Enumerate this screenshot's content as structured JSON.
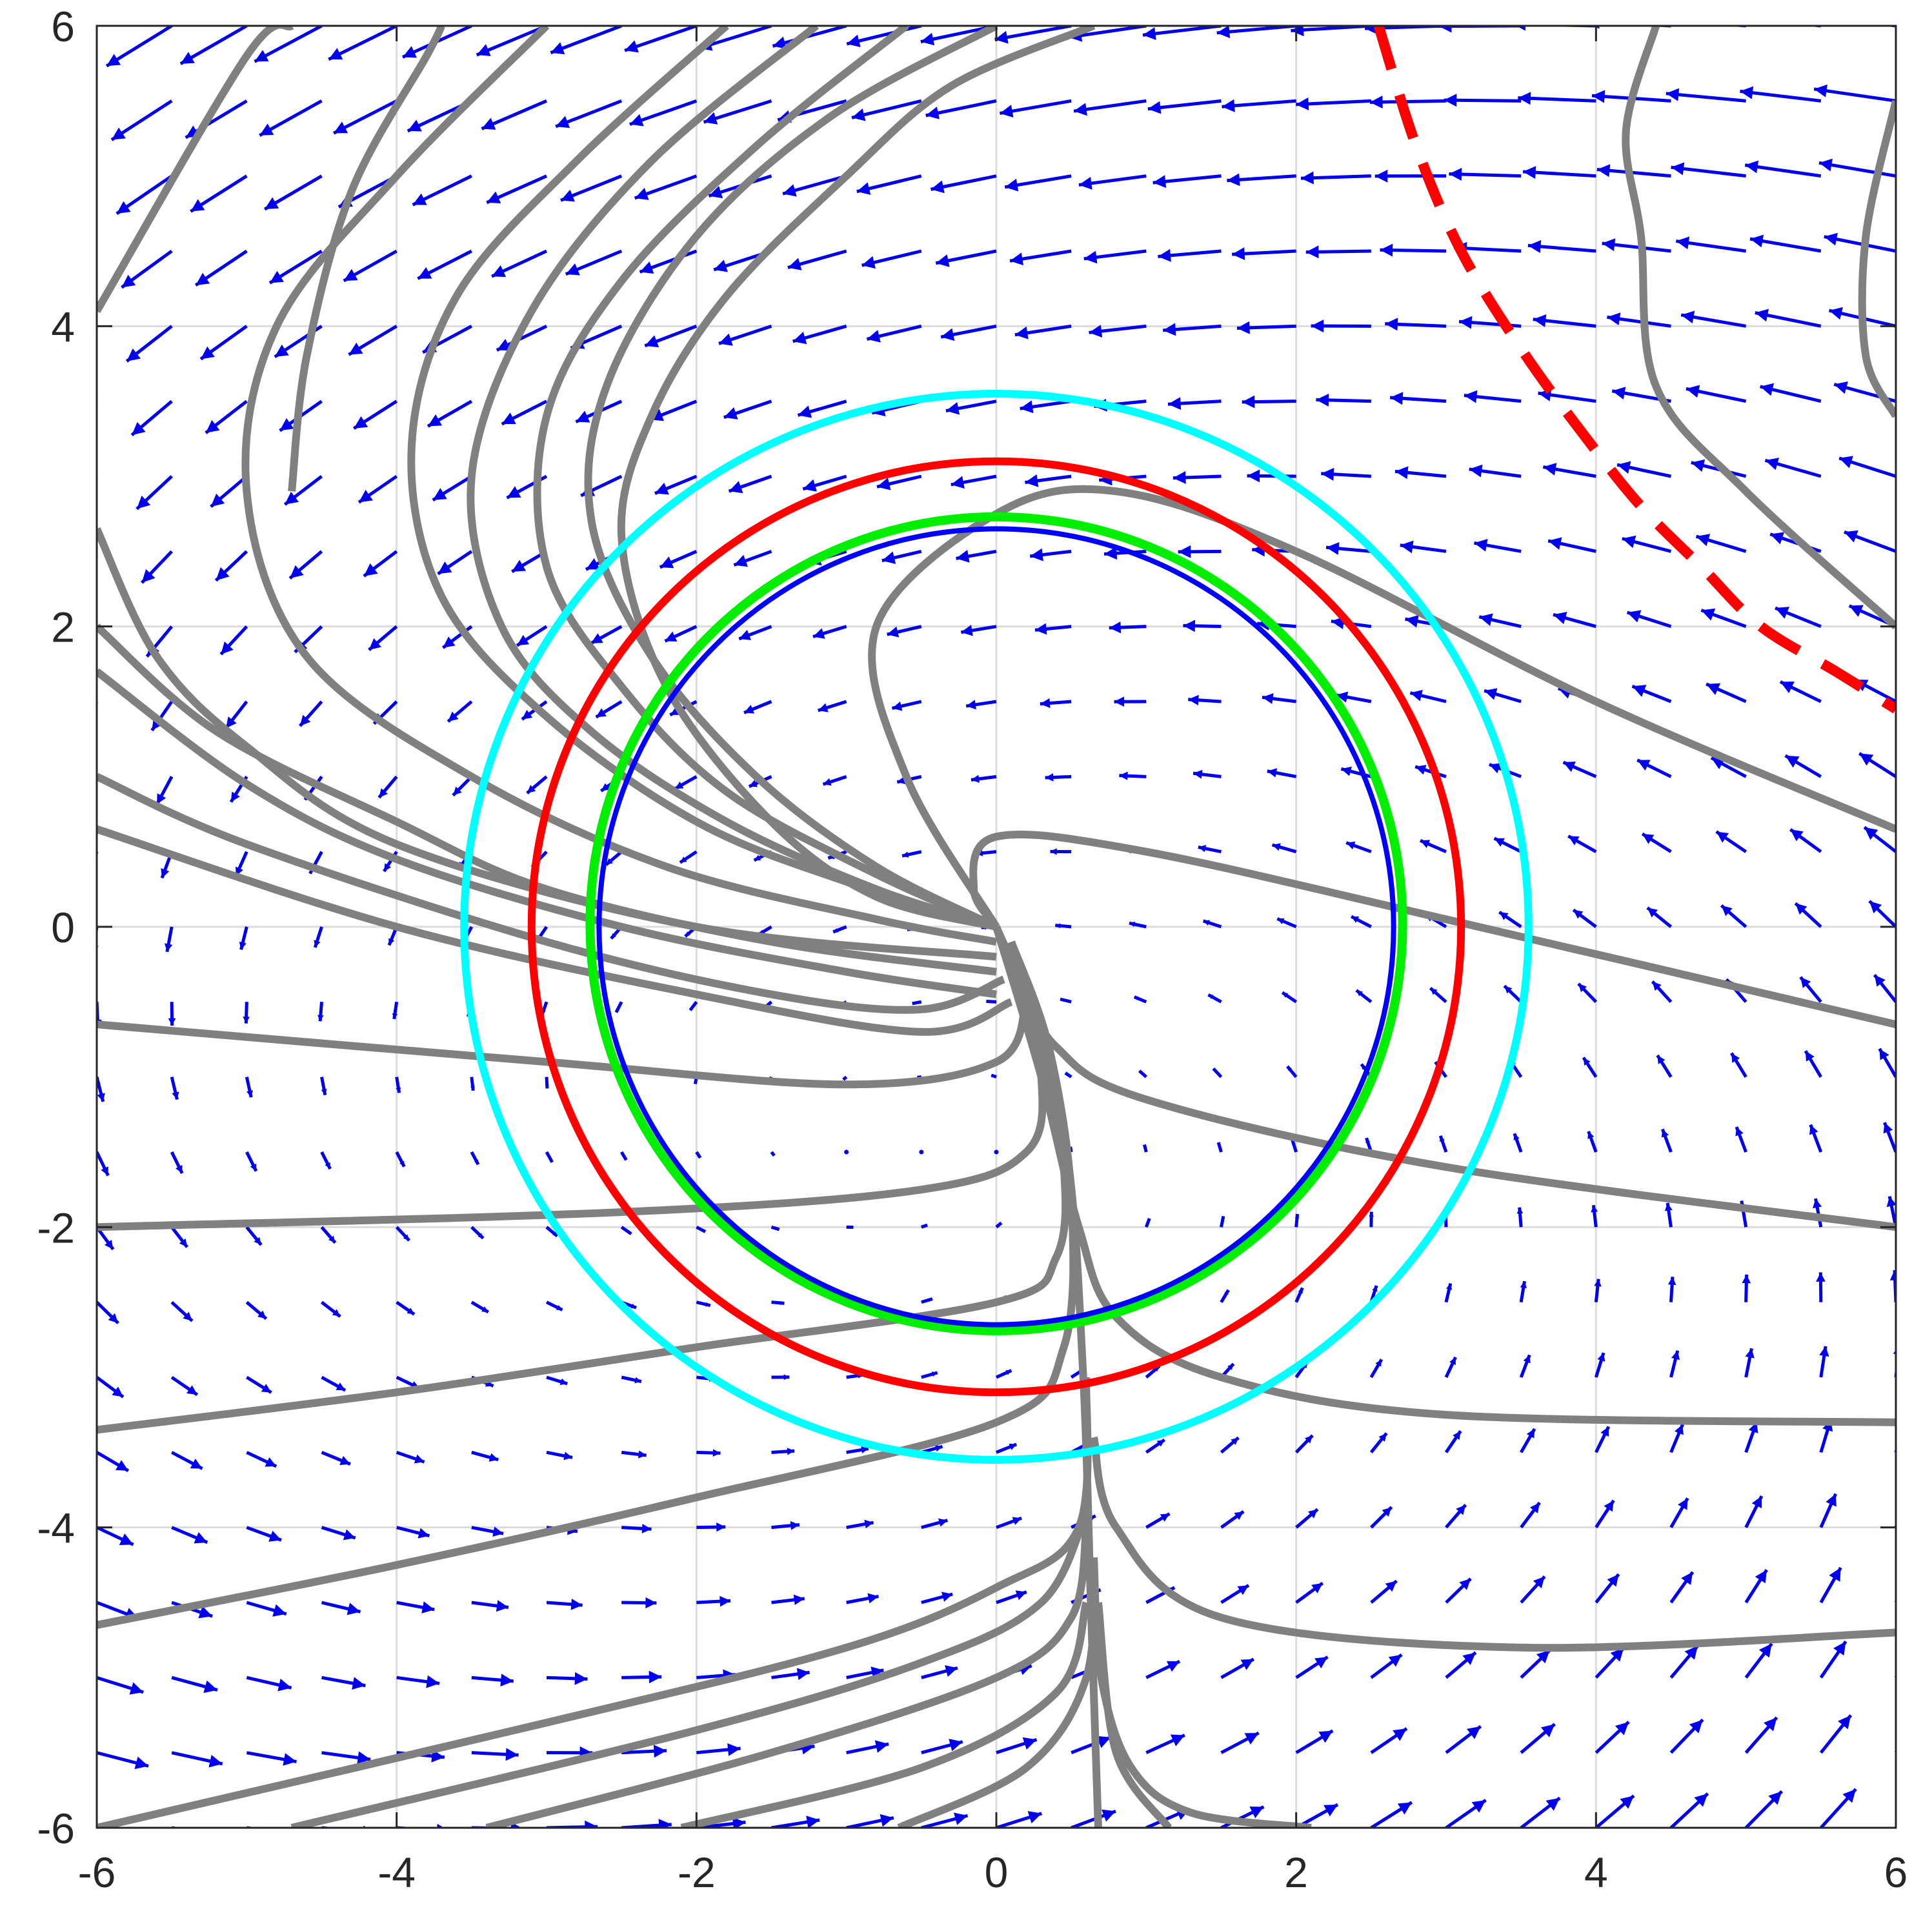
{
  "chart_data": {
    "type": "line",
    "title": "",
    "xlabel": "",
    "ylabel": "",
    "xlim": [
      -6,
      6
    ],
    "ylim": [
      -6,
      6
    ],
    "grid": true,
    "xticks": [
      -6,
      -4,
      -2,
      0,
      2,
      4,
      6
    ],
    "yticks": [
      -6,
      -4,
      -2,
      0,
      2,
      4,
      6
    ],
    "xtick_labels": [
      "-6",
      "-4",
      "-2",
      "0",
      "2",
      "4",
      "6"
    ],
    "ytick_labels": [
      "-6",
      "-4",
      "-2",
      "0",
      "2",
      "4",
      "6"
    ],
    "colors": {
      "vector_field": "#0000ee",
      "streamline": "#808080",
      "circle_cyan": "#00ffff",
      "circle_red": "#ff0000",
      "circle_green": "#00ee00",
      "circle_blue": "#0000ff",
      "dashed_curve": "#ff0000"
    },
    "circles": [
      {
        "center": [
          0,
          0
        ],
        "radius": 3.55,
        "color": "#00ffff"
      },
      {
        "center": [
          0,
          0
        ],
        "radius": 3.1,
        "color": "#ff0000"
      },
      {
        "center": [
          0,
          0.02
        ],
        "radius": 2.71,
        "color": "#00ee00"
      },
      {
        "center": [
          0,
          0
        ],
        "radius": 2.65,
        "color": "#0000ff"
      }
    ],
    "dashed_curve": {
      "color": "#ff0000",
      "points": [
        [
          2.55,
          6.0
        ],
        [
          2.8,
          5.2
        ],
        [
          3.1,
          4.5
        ],
        [
          3.5,
          3.85
        ],
        [
          3.9,
          3.3
        ],
        [
          4.3,
          2.8
        ],
        [
          4.7,
          2.4
        ],
        [
          5.1,
          2.0
        ],
        [
          5.6,
          1.7
        ],
        [
          6.0,
          1.45
        ]
      ]
    },
    "vector_field": {
      "x_range": [
        -6,
        6
      ],
      "y_range": [
        -6,
        6
      ],
      "spacing": 0.5,
      "u": "-(y + 1.5)*0.15 - 0.12*x*0.05 - 0.05*y",
      "v": "x*0.07 - 0.04*(y + 0.5)"
    },
    "streamlines": [
      {
        "points": [
          [
            -6.0,
            4.1
          ],
          [
            -5.0,
            5.8
          ],
          [
            -4.7,
            6.0
          ]
        ]
      },
      {
        "points": [
          [
            -4.7,
            2.9
          ],
          [
            -4.6,
            3.8
          ],
          [
            -4.3,
            4.9
          ],
          [
            -3.8,
            5.8
          ],
          [
            -3.7,
            6.0
          ]
        ]
      },
      {
        "points": [
          [
            -6.0,
            2.65
          ],
          [
            -5.6,
            1.8
          ],
          [
            -5.0,
            1.2
          ],
          [
            -4.0,
            0.55
          ],
          [
            -2.0,
            0.0
          ],
          [
            0.0,
            -0.2
          ]
        ]
      },
      {
        "points": [
          [
            -6.0,
            2.0
          ],
          [
            -5.2,
            1.3
          ],
          [
            -4.0,
            0.7
          ],
          [
            -3.0,
            0.25
          ],
          [
            -1.5,
            -0.1
          ],
          [
            0.0,
            -0.3
          ]
        ]
      },
      {
        "points": [
          [
            -6.0,
            1.7
          ],
          [
            -5.0,
            0.95
          ],
          [
            -4.0,
            0.45
          ],
          [
            -2.5,
            0.0
          ],
          [
            -1.0,
            -0.3
          ],
          [
            0.0,
            -0.45
          ]
        ]
      },
      {
        "points": [
          [
            -6.0,
            1.0
          ],
          [
            -5.0,
            0.55
          ],
          [
            -3.0,
            -0.1
          ],
          [
            -1.5,
            -0.45
          ],
          [
            -0.5,
            -0.55
          ],
          [
            0.05,
            -0.35
          ]
        ]
      },
      {
        "points": [
          [
            -6.0,
            0.65
          ],
          [
            -4.0,
            0.0
          ],
          [
            -2.0,
            -0.45
          ],
          [
            -0.5,
            -0.7
          ],
          [
            0.1,
            -0.5
          ]
        ]
      },
      {
        "points": [
          [
            -6.0,
            -0.65
          ],
          [
            -3.0,
            -0.9
          ],
          [
            -1.0,
            -1.05
          ],
          [
            0.0,
            -0.9
          ],
          [
            0.2,
            -0.5
          ]
        ]
      },
      {
        "points": [
          [
            -6.0,
            -2.0
          ],
          [
            -2.5,
            -1.9
          ],
          [
            -0.5,
            -1.75
          ],
          [
            0.2,
            -1.5
          ],
          [
            0.3,
            -1.0
          ],
          [
            0.15,
            -0.4
          ]
        ]
      },
      {
        "points": [
          [
            -6.0,
            -3.35
          ],
          [
            -4.0,
            -3.1
          ],
          [
            -2.0,
            -2.8
          ],
          [
            0.0,
            -2.5
          ],
          [
            0.4,
            -2.2
          ],
          [
            0.45,
            -1.6
          ],
          [
            0.3,
            -0.8
          ],
          [
            0.1,
            -0.2
          ]
        ]
      },
      {
        "points": [
          [
            -6.0,
            -4.65
          ],
          [
            -4.0,
            -4.25
          ],
          [
            -2.0,
            -3.8
          ],
          [
            0.0,
            -3.3
          ],
          [
            0.45,
            -2.8
          ],
          [
            0.5,
            -1.8
          ],
          [
            0.35,
            -0.8
          ],
          [
            0.1,
            -0.1
          ]
        ]
      },
      {
        "points": [
          [
            -6.0,
            -6.0
          ],
          [
            -3.0,
            -5.3
          ],
          [
            -1.0,
            -4.8
          ],
          [
            0.0,
            -4.4
          ],
          [
            0.55,
            -4.0
          ],
          [
            0.6,
            -3.0
          ]
        ]
      },
      {
        "points": [
          [
            -4.7,
            -6.0
          ],
          [
            -2.0,
            -5.35
          ],
          [
            -0.5,
            -4.9
          ],
          [
            0.3,
            -4.5
          ],
          [
            0.6,
            -3.9
          ]
        ]
      },
      {
        "points": [
          [
            -3.4,
            -6.0
          ],
          [
            -1.5,
            -5.5
          ],
          [
            0.0,
            -5.0
          ],
          [
            0.5,
            -4.6
          ],
          [
            0.6,
            -4.0
          ]
        ]
      },
      {
        "points": [
          [
            -2.1,
            -6.0
          ],
          [
            -0.5,
            -5.6
          ],
          [
            0.4,
            -5.1
          ],
          [
            0.6,
            -4.5
          ]
        ]
      },
      {
        "points": [
          [
            -0.65,
            -6.0
          ],
          [
            0.2,
            -5.6
          ],
          [
            0.6,
            -5.0
          ],
          [
            0.65,
            -4.2
          ]
        ]
      },
      {
        "points": [
          [
            0.68,
            -6.0
          ],
          [
            0.63,
            -4.5
          ],
          [
            0.58,
            -3.0
          ],
          [
            0.47,
            -1.5
          ],
          [
            0.2,
            -0.5
          ],
          [
            0.0,
            0.0
          ]
        ]
      },
      {
        "points": [
          [
            1.15,
            -6.0
          ],
          [
            0.8,
            -5.5
          ],
          [
            0.68,
            -4.5
          ]
        ]
      },
      {
        "points": [
          [
            2.1,
            -6.0
          ],
          [
            1.3,
            -5.9
          ],
          [
            0.9,
            -5.6
          ],
          [
            0.7,
            -5.0
          ],
          [
            0.65,
            -4.2
          ]
        ]
      },
      {
        "points": [
          [
            6.0,
            -4.7
          ],
          [
            3.5,
            -4.8
          ],
          [
            1.5,
            -4.6
          ],
          [
            0.8,
            -4.0
          ],
          [
            0.65,
            -3.4
          ]
        ]
      },
      {
        "points": [
          [
            6.0,
            -3.3
          ],
          [
            3.0,
            -3.25
          ],
          [
            1.5,
            -3.0
          ],
          [
            0.8,
            -2.6
          ],
          [
            0.55,
            -2.0
          ],
          [
            0.3,
            -1.0
          ],
          [
            0.0,
            0.0
          ]
        ]
      },
      {
        "points": [
          [
            6.0,
            -2.0
          ],
          [
            3.0,
            -1.6
          ],
          [
            1.0,
            -1.15
          ],
          [
            0.4,
            -0.8
          ],
          [
            0.15,
            -0.35
          ],
          [
            0.0,
            0.0
          ]
        ]
      },
      {
        "points": [
          [
            6.0,
            -0.65
          ],
          [
            3.0,
            0.05
          ],
          [
            1.0,
            0.5
          ],
          [
            0.0,
            0.6
          ],
          [
            -0.15,
            0.25
          ],
          [
            0.0,
            0.0
          ]
        ]
      },
      {
        "points": [
          [
            6.0,
            0.65
          ],
          [
            4.0,
            1.5
          ],
          [
            2.0,
            2.5
          ],
          [
            0.8,
            2.9
          ],
          [
            0.0,
            2.75
          ],
          [
            -0.8,
            2.0
          ],
          [
            -0.6,
            1.0
          ],
          [
            0.0,
            0.0
          ]
        ]
      },
      {
        "points": [
          [
            6.0,
            2.0
          ],
          [
            5.0,
            2.9
          ],
          [
            4.4,
            3.6
          ],
          [
            4.3,
            4.6
          ],
          [
            4.2,
            5.3
          ],
          [
            4.4,
            6.0
          ]
        ]
      },
      {
        "points": [
          [
            6.0,
            3.4
          ],
          [
            5.8,
            3.8
          ],
          [
            5.8,
            4.6
          ],
          [
            6.0,
            5.5
          ]
        ]
      },
      {
        "points": [
          [
            -6.0,
            0.0
          ],
          [
            -6.0,
            0.0
          ]
        ]
      }
    ],
    "left_swirls": [
      {
        "points": [
          [
            0.65,
            6.0
          ],
          [
            -0.3,
            5.6
          ],
          [
            -1.0,
            5.0
          ],
          [
            -1.8,
            4.2
          ],
          [
            -2.3,
            3.4
          ],
          [
            -2.5,
            2.6
          ],
          [
            -2.2,
            1.6
          ],
          [
            -1.5,
            0.7
          ],
          [
            -0.8,
            0.2
          ],
          [
            0.0,
            0.0
          ]
        ]
      },
      {
        "points": [
          [
            -0.6,
            6.0
          ],
          [
            -1.6,
            5.2
          ],
          [
            -2.5,
            4.3
          ],
          [
            -3.0,
            3.4
          ],
          [
            -3.0,
            2.4
          ],
          [
            -2.5,
            1.6
          ],
          [
            -1.8,
            0.9
          ],
          [
            -0.8,
            0.35
          ],
          [
            0.0,
            0.0
          ]
        ]
      },
      {
        "points": [
          [
            -1.8,
            6.0
          ],
          [
            -2.8,
            5.1
          ],
          [
            -3.6,
            4.2
          ],
          [
            -3.9,
            3.2
          ],
          [
            -3.7,
            2.2
          ],
          [
            -3.0,
            1.4
          ],
          [
            -2.0,
            0.7
          ],
          [
            -1.0,
            0.3
          ],
          [
            0.0,
            0.0
          ]
        ]
      },
      {
        "points": [
          [
            -3.0,
            6.0
          ],
          [
            -4.0,
            5.0
          ],
          [
            -4.8,
            4.0
          ],
          [
            -5.0,
            2.9
          ],
          [
            -4.6,
            1.8
          ],
          [
            -3.5,
            1.0
          ],
          [
            -2.2,
            0.4
          ],
          [
            -0.8,
            0.05
          ],
          [
            0.0,
            -0.1
          ]
        ]
      },
      {
        "points": [
          [
            0.0,
            6.0
          ],
          [
            -1.1,
            5.4
          ],
          [
            -2.0,
            4.6
          ],
          [
            -2.6,
            3.6
          ],
          [
            -2.7,
            2.7
          ],
          [
            -2.3,
            1.8
          ],
          [
            -1.6,
            1.0
          ],
          [
            -0.8,
            0.4
          ],
          [
            0.0,
            0.0
          ]
        ]
      },
      {
        "points": [
          [
            -1.2,
            6.0
          ],
          [
            -2.3,
            5.1
          ],
          [
            -3.1,
            4.1
          ],
          [
            -3.5,
            3.0
          ],
          [
            -3.3,
            2.0
          ],
          [
            -2.7,
            1.3
          ],
          [
            -1.8,
            0.7
          ],
          [
            -0.8,
            0.25
          ],
          [
            0.0,
            0.0
          ]
        ]
      }
    ]
  }
}
